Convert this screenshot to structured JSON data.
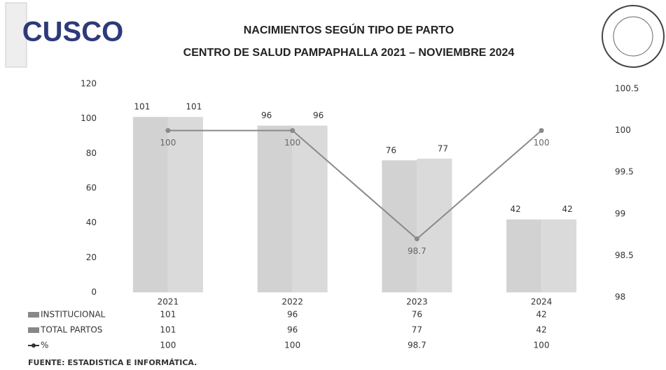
{
  "header": {
    "logo": "CUSCO"
  },
  "chart_data": {
    "type": "bar",
    "title": "NACIMIENTOS SEGÚN TIPO DE PARTO",
    "subtitle": "CENTRO DE SALUD PAMPAPHALLA 2021 – NOVIEMBRE 2024",
    "categories": [
      "2021",
      "2022",
      "2023",
      "2024"
    ],
    "series": [
      {
        "name": "INSTITUCIONAL",
        "color": "#d2d2d2",
        "values": [
          101,
          96,
          76,
          42
        ]
      },
      {
        "name": "TOTAL PARTOS",
        "color": "#dadada",
        "values": [
          101,
          96,
          77,
          42
        ]
      },
      {
        "name": "%",
        "type": "line",
        "axis": "y2",
        "color": "#8a8a8a",
        "values": [
          100,
          100,
          98.7,
          100
        ]
      }
    ],
    "ylim": [
      0,
      120
    ],
    "yticks": [
      0,
      20,
      40,
      60,
      80,
      100,
      120
    ],
    "y2lim": [
      98,
      100.5
    ],
    "y2ticks": [
      98,
      98.5,
      99,
      99.5,
      100,
      100.5
    ],
    "legend": "bottom-table",
    "source": "FUENTE: ESTADISTICA E INFORMÁTICA."
  }
}
